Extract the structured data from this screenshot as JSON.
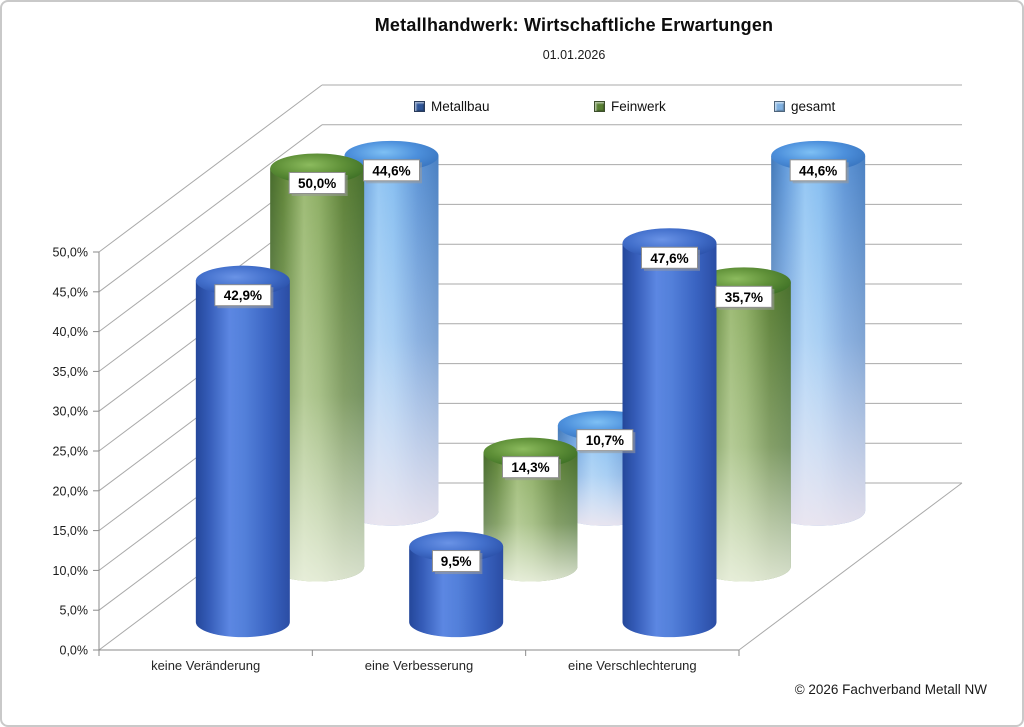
{
  "header": {
    "title": "Metallhandwerk: Wirtschaftliche Erwartungen",
    "subtitle": "01.01.2026"
  },
  "legend": {
    "items": [
      {
        "label": "Metallbau",
        "color": "#2e5597"
      },
      {
        "label": "Feinwerk",
        "color": "#587f33"
      },
      {
        "label": "gesamt",
        "color": "#7fb0e0"
      }
    ]
  },
  "footer": {
    "copyright": "© 2026 Fachverband Metall NW"
  },
  "chart_data": {
    "type": "bar",
    "style": "3d-cylinder",
    "title": "Metallhandwerk: Wirtschaftliche Erwartungen",
    "subtitle": "01.01.2026",
    "categories": [
      "keine Veränderung",
      "eine Verbesserung",
      "eine Verschlechterung"
    ],
    "series": [
      {
        "name": "Metallbau",
        "color": "#3a64c2",
        "values": [
          42.9,
          9.5,
          47.6
        ],
        "labels": [
          "42,9%",
          "9,5%",
          "47,6%"
        ]
      },
      {
        "name": "Feinwerk",
        "color": "#6f9444",
        "values": [
          50.0,
          14.3,
          35.7
        ],
        "labels": [
          "50,0%",
          "14,3%",
          "35,7%"
        ]
      },
      {
        "name": "gesamt",
        "color": "#7ab4ee",
        "values": [
          44.6,
          10.7,
          44.6
        ],
        "labels": [
          "44,6%",
          "10,7%",
          "44,6%"
        ]
      }
    ],
    "xlabel": "",
    "ylabel": "",
    "ylim": [
      0,
      50
    ],
    "ytick_step": 5,
    "ytick_labels": [
      "0,0%",
      "5,0%",
      "10,0%",
      "15,0%",
      "20,0%",
      "25,0%",
      "30,0%",
      "35,0%",
      "40,0%",
      "45,0%",
      "50,0%"
    ],
    "grid": true,
    "legend_position": "top"
  }
}
